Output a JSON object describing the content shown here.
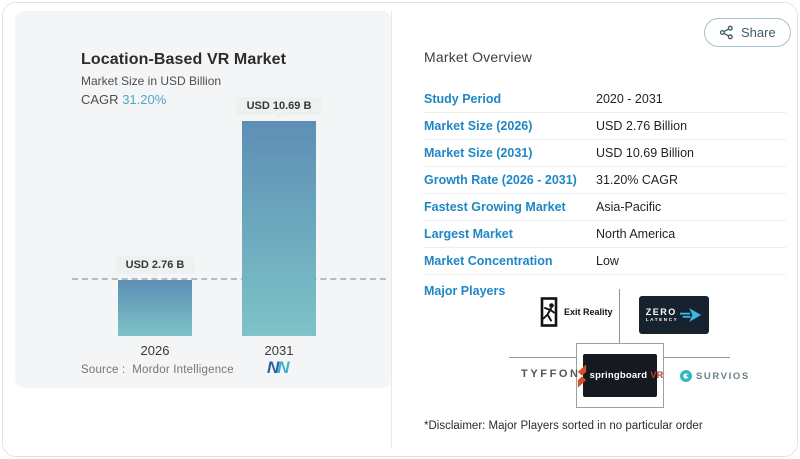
{
  "header": {
    "share_label": "Share"
  },
  "chart_panel": {
    "title": "Location-Based VR Market",
    "subtitle": "Market Size in USD Billion",
    "cagr_label": "CAGR",
    "cagr_value": "31.20%",
    "source_label": "Source :",
    "source_name": "Mordor Intelligence",
    "logo_letter_1": "N",
    "logo_letter_2": "N"
  },
  "chart_data": {
    "type": "bar",
    "title": "Location-Based VR Market",
    "ylabel": "Market Size in USD Billion",
    "categories": [
      "2026",
      "2031"
    ],
    "values": [
      2.76,
      10.69
    ],
    "bar_labels": [
      "USD 2.76 B",
      "USD 10.69 B"
    ],
    "unit": "USD Billion",
    "cagr": "31.20%",
    "ylim": [
      0,
      10.69
    ],
    "reference_line_value": 2.76,
    "grid": "off",
    "bar_color_top": "#5e8eb5",
    "bar_color_bottom": "#7fc2c8"
  },
  "overview": {
    "title": "Market Overview",
    "rows": [
      {
        "label": "Study Period",
        "value": "2020 - 2031"
      },
      {
        "label": "Market Size (2026)",
        "value": "USD 2.76 Billion"
      },
      {
        "label": "Market Size (2031)",
        "value": "USD 10.69 Billion"
      },
      {
        "label": "Growth Rate (2026 - 2031)",
        "value": "31.20% CAGR"
      },
      {
        "label": "Fastest Growing Market",
        "value": "Asia-Pacific"
      },
      {
        "label": "Largest Market",
        "value": "North America"
      },
      {
        "label": "Market Concentration",
        "value": "Low"
      }
    ],
    "major_players_label": "Major Players",
    "players": {
      "exit_reality": "Exit Reality",
      "zero_latency_line1": "ZERO",
      "zero_latency_line2": "LATENCY",
      "tyffon": "TYFFON",
      "springboard": "springboard",
      "springboard_suffix": "VR",
      "survios": "SURVIOS"
    },
    "disclaimer": "*Disclaimer: Major Players sorted in no particular order"
  },
  "colors": {
    "accent_blue": "#1e87c4",
    "cagr_teal": "#4aa7c9",
    "bar_top": "#5e8eb5",
    "bar_bottom": "#7fc2c8",
    "panel_bg": "#f4f5f6"
  }
}
